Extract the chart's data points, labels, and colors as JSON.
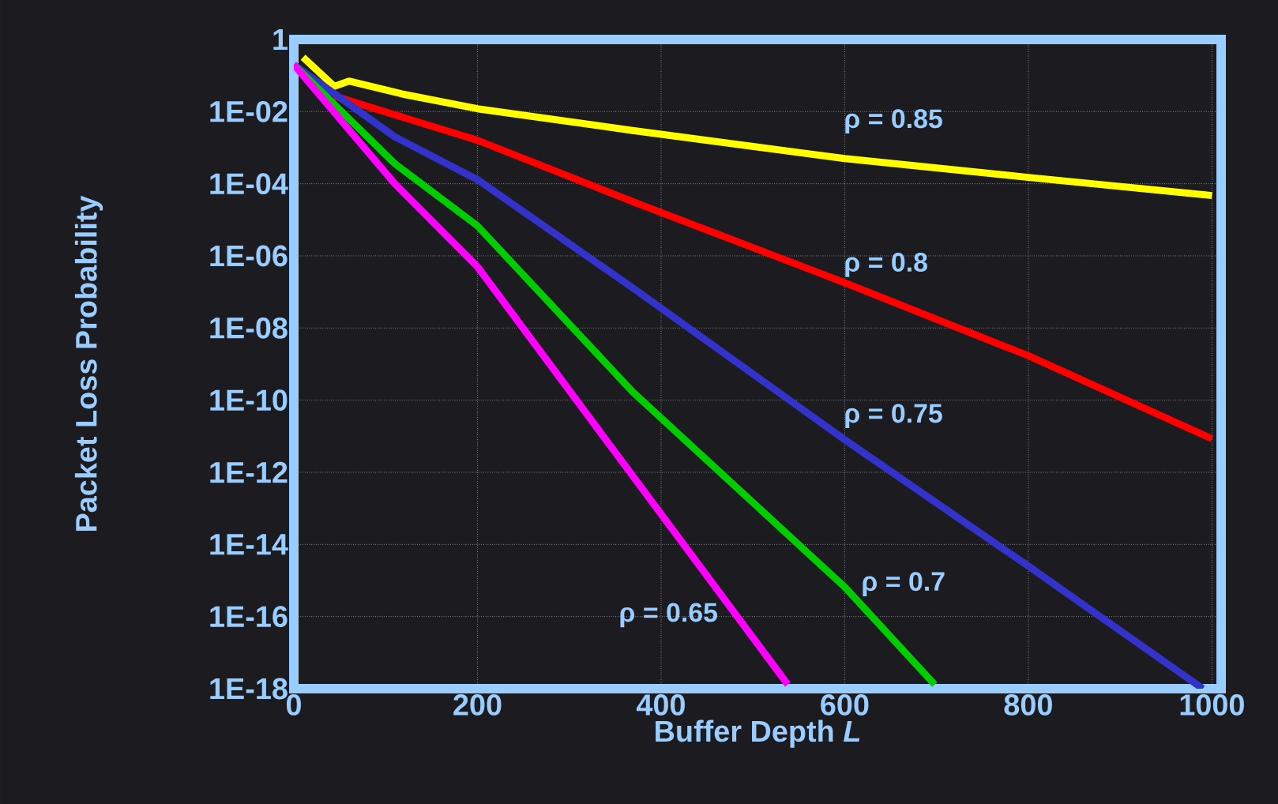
{
  "chart_data": {
    "type": "line",
    "xlabel": "Buffer Depth *L*",
    "ylabel": "Packet Loss Probability",
    "log": true,
    "grid": true,
    "legend": false,
    "line_style": "solid",
    "marker": "none",
    "xlim": [
      0,
      1010
    ],
    "xticks": [
      0,
      200,
      400,
      600,
      800,
      1000
    ],
    "ylim": [
      1e-18,
      1
    ],
    "yticks": [
      1,
      {
        "value": 0.01,
        "label": "1E-02"
      },
      {
        "value": 0.0001,
        "label": "1E-04"
      },
      {
        "value": 1e-06,
        "label": "1E-06"
      },
      {
        "value": 1e-08,
        "label": "1E-08"
      },
      {
        "value": 1e-10,
        "label": "1E-10"
      },
      {
        "value": 1e-12,
        "label": "1E-12"
      },
      {
        "value": 1e-14,
        "label": "1E-14"
      },
      {
        "value": 1e-16,
        "label": "1E-16"
      },
      {
        "value": 1e-18,
        "label": "1E-18"
      }
    ],
    "series": [
      {
        "name": "ρ = 0.85",
        "color": "#ffff00",
        "x": [
          10,
          44,
          60,
          120,
          200,
          369,
          600,
          800,
          1000
        ],
        "values": [
          0.32,
          0.05,
          0.07,
          0.03,
          0.012,
          0.003,
          0.0005,
          0.00015,
          4.7e-05
        ]
      },
      {
        "name": "ρ = 0.8",
        "color": "#ff0000",
        "x": [
          44,
          200,
          369,
          600,
          800,
          1000
        ],
        "values": [
          0.027,
          0.0016,
          3.2e-05,
          1.8e-07,
          1.7e-09,
          8.5e-12
        ]
      },
      {
        "name": "ρ = 0.75",
        "color": "#3333cc",
        "x": [
          0,
          110,
          200,
          369,
          600,
          800,
          990
        ],
        "values": [
          0.2,
          0.002,
          0.00013,
          1.3e-07,
          8e-12,
          2.5e-15,
          1e-18
        ]
      },
      {
        "name": "ρ = 0.7",
        "color": "#00cc00",
        "x": [
          0,
          110,
          200,
          369,
          600,
          698
        ],
        "values": [
          0.2,
          0.00036,
          6.8e-06,
          1.7e-10,
          6.6e-16,
          1.3e-18
        ]
      },
      {
        "name": "ρ = 0.65",
        "color": "#ff00ff",
        "x": [
          0,
          110,
          200,
          369,
          538
        ],
        "values": [
          0.2,
          0.0001,
          5e-07,
          8e-13,
          1.3e-18
        ]
      }
    ]
  }
}
